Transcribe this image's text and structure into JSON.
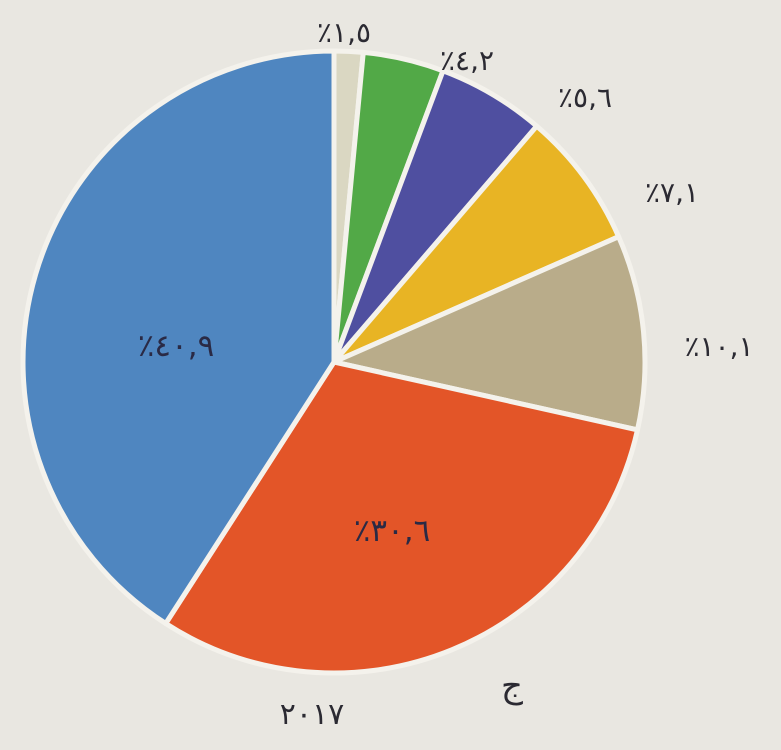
{
  "chart_data": {
    "type": "pie",
    "slices": [
      {
        "value": 1.5,
        "label": "٪١,٥",
        "color": "#dad7c2"
      },
      {
        "value": 4.2,
        "label": "٪٤,٢",
        "color": "#52a947"
      },
      {
        "value": 5.6,
        "label": "٪٥,٦",
        "color": "#4f4fa0"
      },
      {
        "value": 7.1,
        "label": "٪٧,١",
        "color": "#e8b424"
      },
      {
        "value": 10.1,
        "label": "٪١٠,١",
        "color": "#b9ac8a"
      },
      {
        "value": 30.6,
        "label": "٪٣٠,٦",
        "color": "#e35528"
      },
      {
        "value": 40.9,
        "label": "٪٤٠,٩",
        "color": "#4f86c0"
      }
    ],
    "panel_letter": "ج",
    "year": "٢٠١٧"
  }
}
